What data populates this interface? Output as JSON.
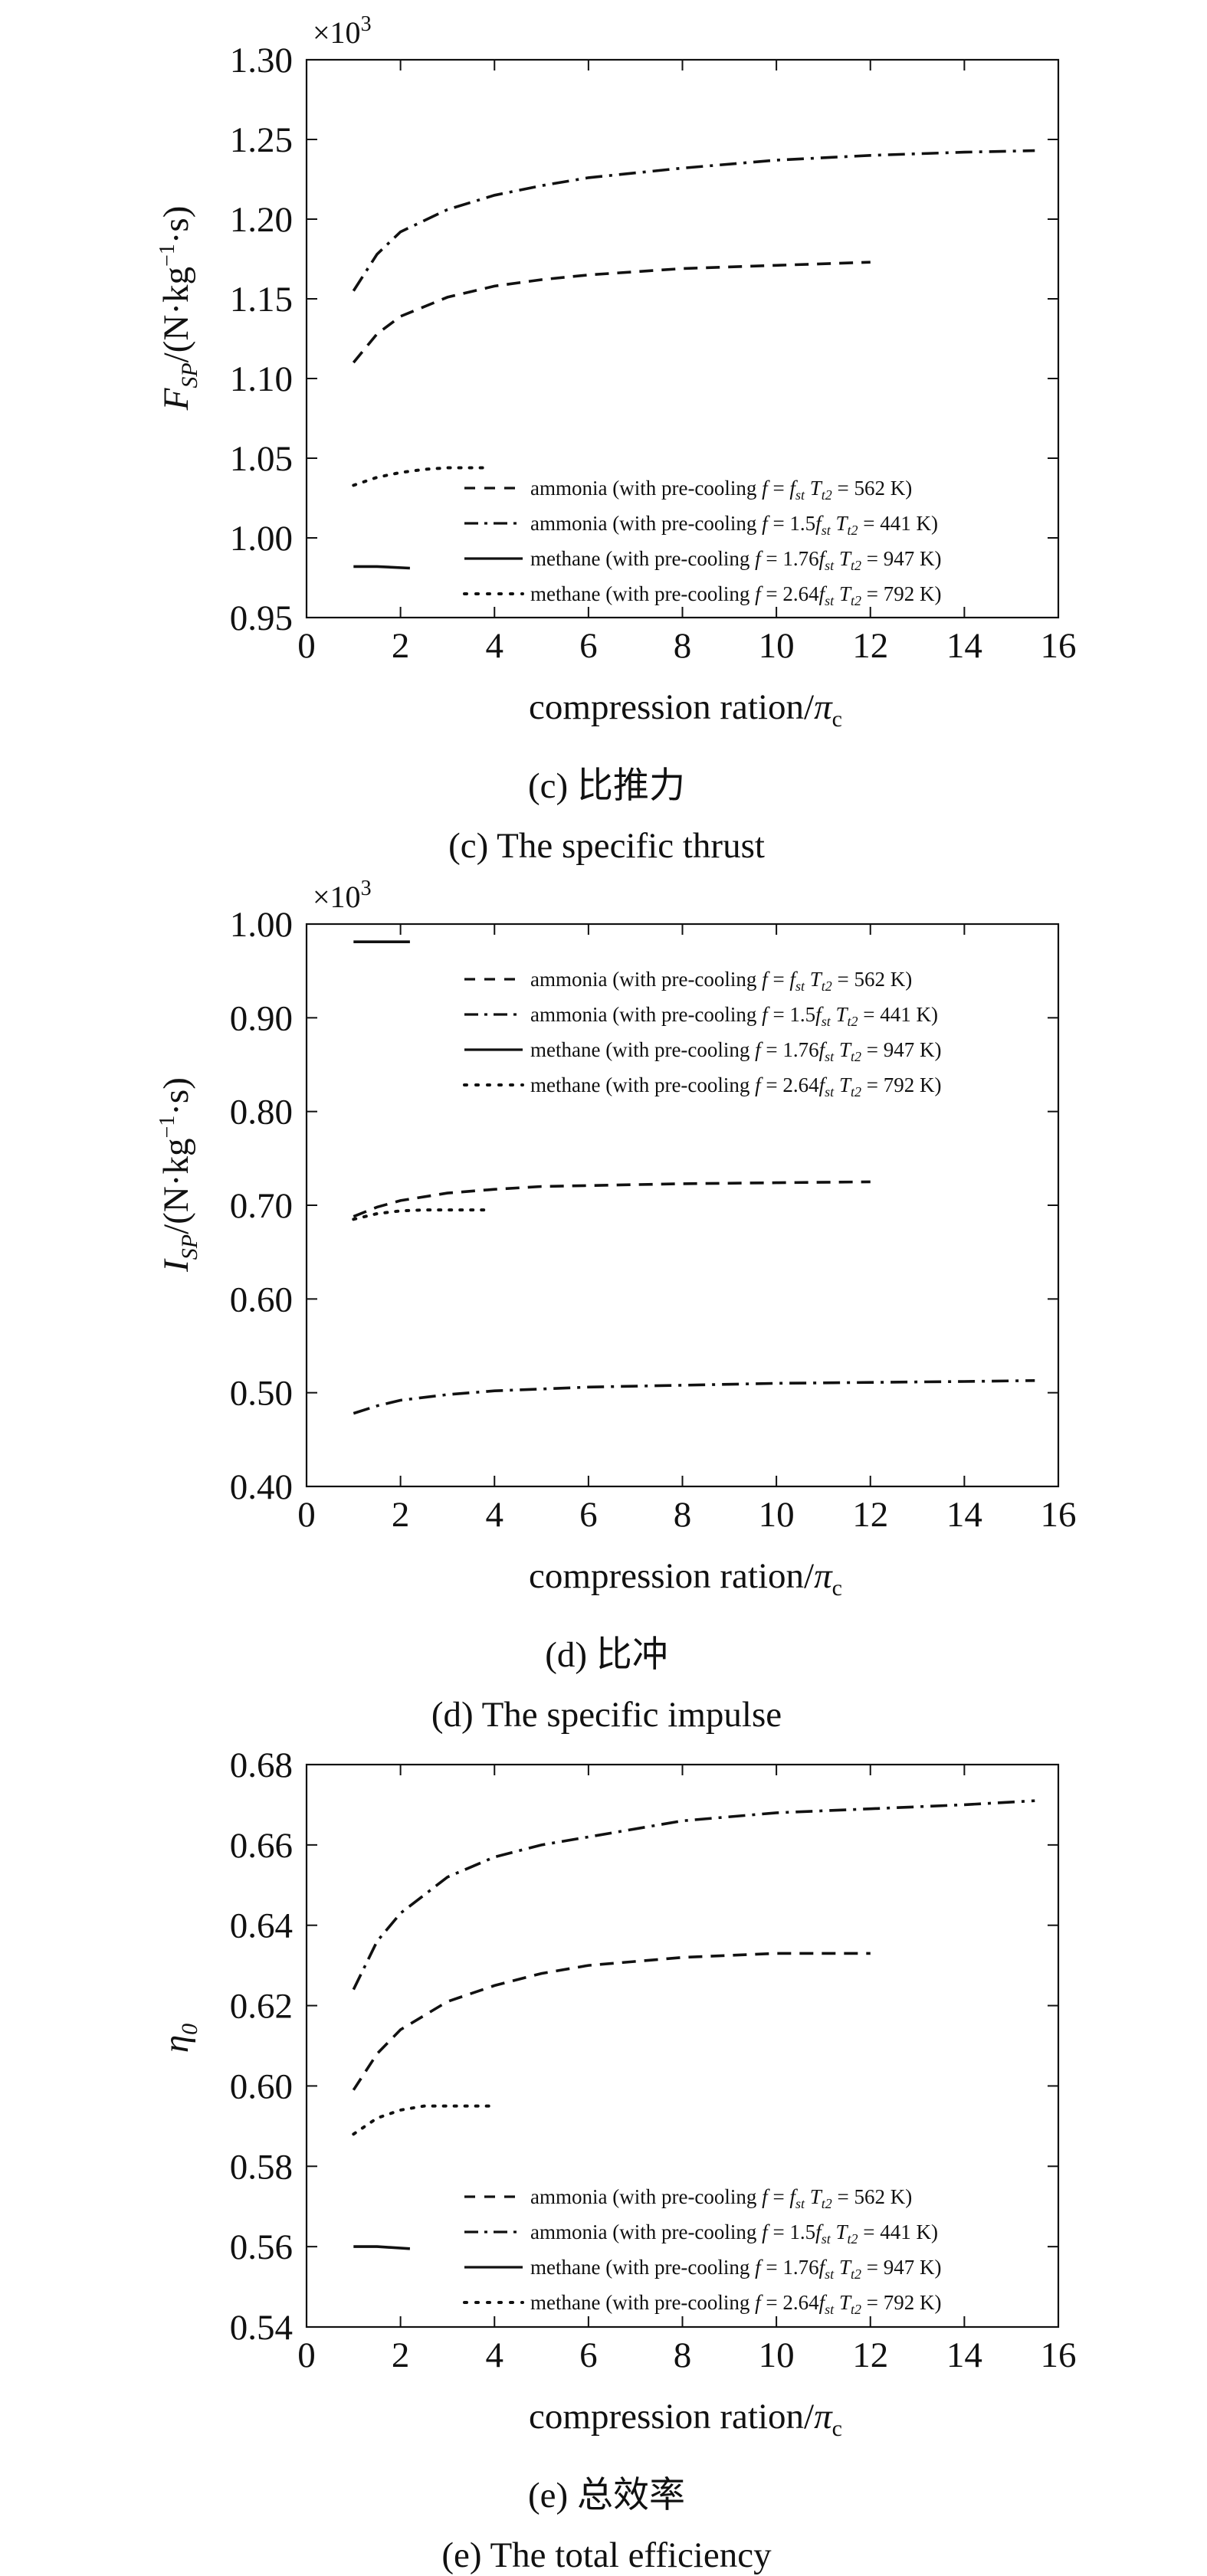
{
  "chart_data": [
    {
      "type": "line",
      "caption_cn": "(c) 比推力",
      "caption_en": "(c) The specific thrust",
      "multiplier": "×10",
      "multiplier_exp": "3",
      "ylabel": {
        "main": "F",
        "sub": "SP",
        "unit": "/(N·kg",
        "exp": "−1",
        "tail": "·s)"
      },
      "xlabel": {
        "text": "compression ration/",
        "greek": "π",
        "sub": "c"
      },
      "xlim": [
        0,
        16
      ],
      "ylim": [
        0.95,
        1.3
      ],
      "xticks": [
        "0",
        "2",
        "4",
        "6",
        "8",
        "10",
        "12",
        "14",
        "16"
      ],
      "yticks": [
        "0.95",
        "1.00",
        "1.05",
        "1.10",
        "1.15",
        "1.20",
        "1.25",
        "1.30"
      ],
      "legend_position": "lower-right",
      "series": [
        {
          "name": "ammonia (with pre-cooling f = fst Tt2 = 562 K)",
          "dash": "dashed",
          "x": [
            1,
            1.5,
            2,
            3,
            4,
            5,
            6,
            8,
            10,
            12
          ],
          "y": [
            1.11,
            1.128,
            1.139,
            1.151,
            1.158,
            1.162,
            1.165,
            1.169,
            1.171,
            1.173
          ]
        },
        {
          "name": "ammonia (with pre-cooling f = 1.5fst Tt2 = 441 K)",
          "dash": "dashdot",
          "x": [
            1,
            1.5,
            2,
            3,
            4,
            5,
            6,
            8,
            10,
            12,
            14,
            15.5
          ],
          "y": [
            1.155,
            1.178,
            1.192,
            1.206,
            1.215,
            1.221,
            1.226,
            1.232,
            1.237,
            1.24,
            1.242,
            1.243
          ]
        },
        {
          "name": "methane (with pre-cooling f = 1.76fst Tt2 = 947 K)",
          "dash": "solid",
          "x": [
            1,
            1.5,
            2.2
          ],
          "y": [
            0.982,
            0.982,
            0.981
          ]
        },
        {
          "name": "methane (with pre-cooling f = 2.64fst Tt2 = 792 K)",
          "dash": "dotted",
          "x": [
            1,
            1.5,
            2,
            2.5,
            3,
            3.5,
            3.9
          ],
          "y": [
            1.033,
            1.038,
            1.041,
            1.043,
            1.044,
            1.044,
            1.044
          ]
        }
      ]
    },
    {
      "type": "line",
      "caption_cn": "(d) 比冲",
      "caption_en": "(d) The specific impulse",
      "multiplier": "×10",
      "multiplier_exp": "3",
      "ylabel": {
        "main": "I",
        "sub": "SP",
        "unit": "/(N·kg",
        "exp": "−1",
        "tail": "·s)"
      },
      "xlabel": {
        "text": "compression ration/",
        "greek": "π",
        "sub": "c"
      },
      "xlim": [
        0,
        16
      ],
      "ylim": [
        0.4,
        1.0
      ],
      "xticks": [
        "0",
        "2",
        "4",
        "6",
        "8",
        "10",
        "12",
        "14",
        "16"
      ],
      "yticks": [
        "0.40",
        "0.50",
        "0.60",
        "0.70",
        "0.80",
        "0.90",
        "1.00"
      ],
      "legend_position": "top-right",
      "series": [
        {
          "name": "ammonia (with pre-cooling f = fst Tt2 = 562 K)",
          "dash": "dashed",
          "x": [
            1,
            1.5,
            2,
            3,
            4,
            5,
            6,
            8,
            10,
            12
          ],
          "y": [
            0.688,
            0.698,
            0.705,
            0.713,
            0.717,
            0.72,
            0.721,
            0.723,
            0.724,
            0.725
          ]
        },
        {
          "name": "ammonia (with pre-cooling f = 1.5fst Tt2 = 441 K)",
          "dash": "dashdot",
          "x": [
            1,
            1.5,
            2,
            3,
            4,
            5,
            6,
            8,
            10,
            12,
            14,
            15.5
          ],
          "y": [
            0.478,
            0.486,
            0.492,
            0.498,
            0.502,
            0.504,
            0.506,
            0.508,
            0.51,
            0.511,
            0.512,
            0.513
          ]
        },
        {
          "name": "methane (with pre-cooling f = 1.76fst Tt2 = 947 K)",
          "dash": "solid",
          "x": [
            1,
            1.5,
            2.2
          ],
          "y": [
            0.981,
            0.981,
            0.981
          ]
        },
        {
          "name": "methane (with pre-cooling f = 2.64fst Tt2 = 792 K)",
          "dash": "dotted",
          "x": [
            1,
            1.5,
            2,
            2.5,
            3,
            3.5,
            3.9
          ],
          "y": [
            0.685,
            0.691,
            0.694,
            0.695,
            0.695,
            0.695,
            0.695
          ]
        }
      ]
    },
    {
      "type": "line",
      "caption_cn": "(e) 总效率",
      "caption_en": "(e) The total efficiency",
      "multiplier": "",
      "multiplier_exp": "",
      "ylabel": {
        "main": "η",
        "sub": "0",
        "unit": "",
        "exp": "",
        "tail": ""
      },
      "xlabel": {
        "text": "compression ration/",
        "greek": "π",
        "sub": "c"
      },
      "xlim": [
        0,
        16
      ],
      "ylim": [
        0.54,
        0.68
      ],
      "xticks": [
        "0",
        "2",
        "4",
        "6",
        "8",
        "10",
        "12",
        "14",
        "16"
      ],
      "yticks": [
        "0.54",
        "0.56",
        "0.58",
        "0.60",
        "0.62",
        "0.64",
        "0.66",
        "0.68"
      ],
      "legend_position": "lower-right",
      "series": [
        {
          "name": "ammonia (with pre-cooling f = fst Tt2 = 562 K)",
          "dash": "dashed",
          "x": [
            1,
            1.5,
            2,
            3,
            4,
            5,
            6,
            8,
            10,
            12
          ],
          "y": [
            0.599,
            0.608,
            0.614,
            0.621,
            0.625,
            0.628,
            0.63,
            0.632,
            0.633,
            0.633
          ]
        },
        {
          "name": "ammonia (with pre-cooling f = 1.5fst Tt2 = 441 K)",
          "dash": "dashdot",
          "x": [
            1,
            1.5,
            2,
            3,
            4,
            5,
            6,
            8,
            10,
            12,
            14,
            15.5
          ],
          "y": [
            0.624,
            0.636,
            0.643,
            0.652,
            0.657,
            0.66,
            0.662,
            0.666,
            0.668,
            0.669,
            0.67,
            0.671
          ]
        },
        {
          "name": "methane (with pre-cooling f = 1.76fst Tt2 = 947 K)",
          "dash": "solid",
          "x": [
            1,
            1.5,
            2.2
          ],
          "y": [
            0.56,
            0.56,
            0.5595
          ]
        },
        {
          "name": "methane (with pre-cooling f = 2.64fst Tt2 = 792 K)",
          "dash": "dotted",
          "x": [
            1,
            1.5,
            2,
            2.5,
            3,
            3.5,
            4
          ],
          "y": [
            0.588,
            0.592,
            0.594,
            0.595,
            0.595,
            0.595,
            0.595
          ]
        }
      ]
    }
  ],
  "legend_items": [
    {
      "pre": "ammonia (with pre-cooling ",
      "f": "f",
      "eq": " = ",
      "coef": "",
      "fs": "f",
      "st": "st",
      "T": "T",
      "t2": "t2",
      "val": " = 562 K)"
    },
    {
      "pre": "ammonia (with pre-cooling ",
      "f": "f",
      "eq": " = ",
      "coef": "1.5",
      "fs": "f",
      "st": "st",
      "T": "T",
      "t2": "t2",
      "val": " = 441 K)"
    },
    {
      "pre": "methane (with pre-cooling ",
      "f": "f",
      "eq": " = ",
      "coef": "1.76",
      "fs": "f",
      "st": "st",
      "T": "T",
      "t2": "t2",
      "val": " = 947 K)"
    },
    {
      "pre": "methane (with pre-cooling ",
      "f": "f",
      "eq": " = ",
      "coef": "2.64",
      "fs": "f",
      "st": "st",
      "T": "T",
      "t2": "t2",
      "val": " = 792 K)"
    }
  ]
}
